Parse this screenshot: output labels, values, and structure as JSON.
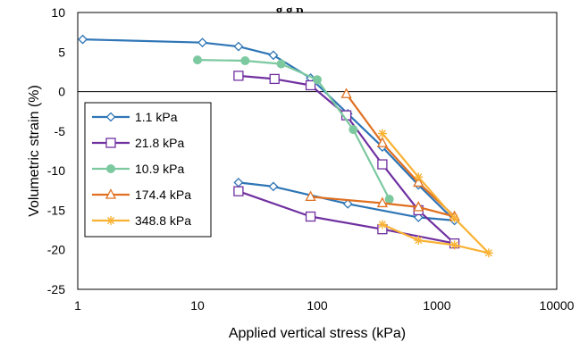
{
  "chart_data": {
    "type": "line",
    "title": "… g   g p",
    "xlabel": "Applied vertical stress (kPa)",
    "ylabel": "Volumetric strain (%)",
    "xscale": "log",
    "xlim": [
      1,
      10000
    ],
    "ylim": [
      -25,
      10
    ],
    "x_ticks": [
      "1",
      "10",
      "100",
      "1000",
      "10000"
    ],
    "y_ticks": [
      "10",
      "5",
      "0",
      "-5",
      "-10",
      "-15",
      "-20",
      "-25"
    ],
    "grid": false,
    "legend_position": "left",
    "series": [
      {
        "name": "1.1 kPa",
        "color": "#2E75B6",
        "marker": "diamond",
        "points": [
          [
            1.1,
            6.6
          ],
          [
            11,
            6.2
          ],
          [
            22,
            5.7
          ],
          [
            43,
            4.6
          ],
          [
            88,
            1.7
          ],
          [
            180,
            -2.8
          ],
          [
            350,
            -7.0
          ],
          [
            700,
            -11.8
          ],
          [
            1400,
            -16.3
          ],
          [
            700,
            -15.9
          ],
          [
            180,
            -14.2
          ],
          [
            43,
            -12.0
          ],
          [
            22,
            -11.5
          ]
        ]
      },
      {
        "name": "21.8 kPa",
        "color": "#7030A0",
        "marker": "square",
        "points": [
          [
            22,
            2.0
          ],
          [
            44,
            1.6
          ],
          [
            88,
            0.8
          ],
          [
            175,
            -3.0
          ],
          [
            350,
            -9.2
          ],
          [
            700,
            -15.0
          ],
          [
            1400,
            -19.2
          ],
          [
            350,
            -17.4
          ],
          [
            88,
            -15.8
          ],
          [
            22,
            -12.6
          ]
        ]
      },
      {
        "name": "10.9 kPa",
        "color": "#7CC9A0",
        "marker": "circle",
        "points": [
          [
            10,
            4.0
          ],
          [
            25,
            3.9
          ],
          [
            50,
            3.5
          ],
          [
            100,
            1.5
          ],
          [
            200,
            -4.8
          ],
          [
            400,
            -13.6
          ]
        ]
      },
      {
        "name": "174.4 kPa",
        "color": "#E07020",
        "marker": "triangle",
        "points": [
          [
            175,
            -0.3
          ],
          [
            350,
            -6.5
          ],
          [
            700,
            -11.5
          ],
          [
            1400,
            -15.8
          ],
          [
            700,
            -14.6
          ],
          [
            350,
            -14.1
          ],
          [
            88,
            -13.3
          ]
        ]
      },
      {
        "name": "348.8 kPa",
        "color": "#F9B234",
        "marker": "star",
        "points": [
          [
            350,
            -5.3
          ],
          [
            700,
            -10.8
          ],
          [
            1400,
            -16.0
          ],
          [
            2700,
            -20.4
          ],
          [
            1400,
            -19.4
          ],
          [
            700,
            -18.8
          ],
          [
            350,
            -16.8
          ]
        ]
      }
    ]
  }
}
